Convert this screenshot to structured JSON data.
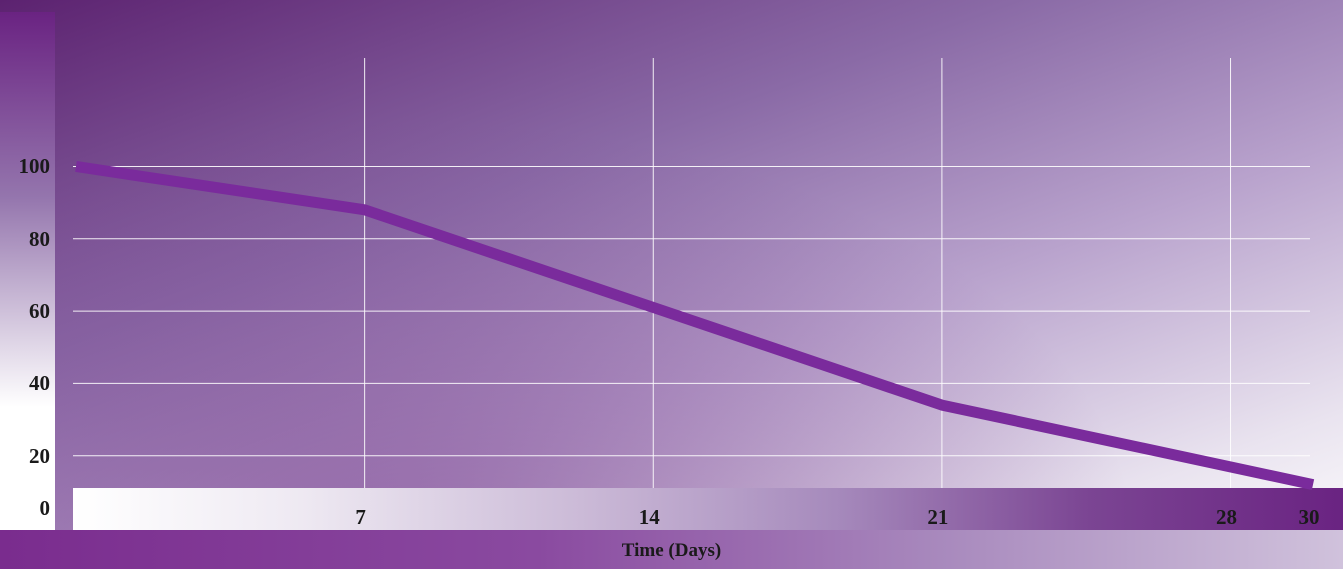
{
  "chart_data": {
    "type": "line",
    "title": "",
    "xlabel": "Time (Days)",
    "ylabel": "",
    "x": [
      0,
      7,
      14,
      21,
      30
    ],
    "series": [
      {
        "values": [
          100,
          88,
          61,
          34,
          12
        ]
      }
    ],
    "xticks": [
      7,
      14,
      21,
      28,
      30
    ],
    "xtick_labels": [
      "7",
      "14",
      "21",
      "28",
      "30"
    ],
    "yticks": [
      0,
      20,
      40,
      60,
      80,
      100
    ],
    "ytick_labels": [
      "0",
      "20",
      "40",
      "60",
      "80",
      "100"
    ],
    "xlim": [
      0,
      30
    ],
    "ylim": [
      0,
      130
    ],
    "grid": true,
    "legend": "none",
    "colors": {
      "line": "#7a2b9c",
      "grid": "#ffffff",
      "background_dark": "#5c2270",
      "background_light": "#ffffff"
    }
  }
}
